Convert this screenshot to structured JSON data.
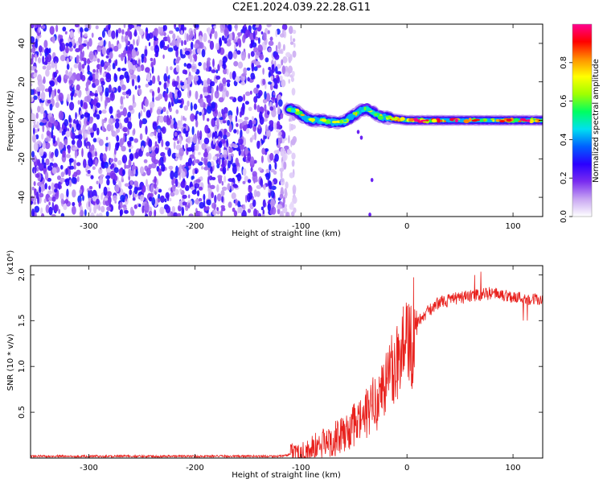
{
  "title": "C2E1.2024.039.22.28.G11",
  "chart_data": [
    {
      "type": "heatmap",
      "name": "spectrogram",
      "xlabel": "Height of straight line (km)",
      "ylabel": "Frequency (Hz)",
      "xlim": [
        -355,
        128
      ],
      "ylim": [
        -50,
        50
      ],
      "xticks": [
        -300,
        -200,
        -100,
        0,
        100
      ],
      "yticks": [
        -40,
        -20,
        0,
        20,
        40
      ],
      "colorbar": {
        "label": "Normalized spectral amplitude",
        "range": [
          0.0,
          1.0
        ],
        "ticks": [
          0.0,
          0.2,
          0.4,
          0.6,
          0.8
        ],
        "tick_labels": [
          "0.0",
          "0.2",
          "0.4",
          "0.6",
          "0.8"
        ],
        "colormap": [
          "#ffffff",
          "#c8a6f2",
          "#7a2cf0",
          "#2a00ff",
          "#0060ff",
          "#00e0f0",
          "#00ff60",
          "#a0ff00",
          "#ffff00",
          "#ff9000",
          "#ff0000",
          "#ff0090"
        ]
      },
      "noise_region": {
        "x_range": [
          -355,
          -112
        ],
        "freq_range": [
          -50,
          50
        ]
      },
      "signal_ridge": [
        {
          "x": -112,
          "f": 6
        },
        {
          "x": -105,
          "f": 5
        },
        {
          "x": -98,
          "f": 2
        },
        {
          "x": -90,
          "f": 0
        },
        {
          "x": -80,
          "f": 0
        },
        {
          "x": -70,
          "f": -1
        },
        {
          "x": -60,
          "f": -1
        },
        {
          "x": -52,
          "f": 2
        },
        {
          "x": -44,
          "f": 5
        },
        {
          "x": -38,
          "f": 6
        },
        {
          "x": -32,
          "f": 4
        },
        {
          "x": -25,
          "f": 2
        },
        {
          "x": -15,
          "f": 1
        },
        {
          "x": 0,
          "f": 0
        },
        {
          "x": 128,
          "f": 0
        }
      ]
    },
    {
      "type": "line",
      "name": "snr",
      "xlabel": "Height of straight line (km)",
      "ylabel": "SNR (10 * v/v)",
      "y_multiplier": "(x10⁴)",
      "xlim": [
        -355,
        128
      ],
      "ylim": [
        0.0,
        2.1
      ],
      "xticks": [
        -300,
        -200,
        -100,
        0,
        100
      ],
      "yticks": [
        0.5,
        1.0,
        1.5,
        2.0
      ],
      "ytick_labels": [
        "0.5",
        "1.0",
        "1.5",
        "2.0"
      ],
      "color": "#e8201c",
      "envelope": [
        {
          "x": -355,
          "y": 0.02
        },
        {
          "x": -200,
          "y": 0.02
        },
        {
          "x": -120,
          "y": 0.02
        },
        {
          "x": -100,
          "y": 0.05
        },
        {
          "x": -80,
          "y": 0.15
        },
        {
          "x": -60,
          "y": 0.25
        },
        {
          "x": -40,
          "y": 0.45
        },
        {
          "x": -25,
          "y": 0.7
        },
        {
          "x": -15,
          "y": 0.95
        },
        {
          "x": -5,
          "y": 1.15
        },
        {
          "x": 5,
          "y": 1.4
        },
        {
          "x": 15,
          "y": 1.55
        },
        {
          "x": 30,
          "y": 1.7
        },
        {
          "x": 50,
          "y": 1.75
        },
        {
          "x": 80,
          "y": 1.8
        },
        {
          "x": 100,
          "y": 1.76
        },
        {
          "x": 128,
          "y": 1.72
        }
      ]
    }
  ]
}
